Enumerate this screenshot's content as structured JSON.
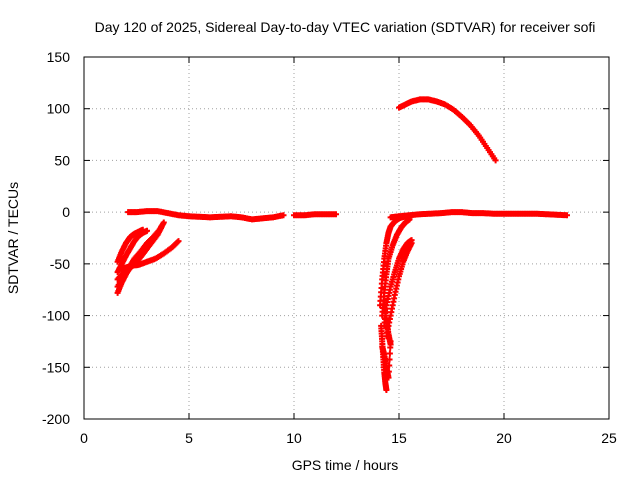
{
  "chart_data": {
    "type": "scatter",
    "title": "Day 120 of 2025, Sidereal Day-to-day VTEC variation (SDTVAR) for receiver sofi",
    "xlabel": "GPS time / hours",
    "ylabel": "SDTVAR / TECUs",
    "xlim": [
      0,
      25
    ],
    "ylim": [
      -200,
      150
    ],
    "x_ticks": [
      0,
      5,
      10,
      15,
      20,
      25
    ],
    "y_ticks": [
      -200,
      -150,
      -100,
      -50,
      0,
      50,
      100,
      150
    ],
    "grid": true,
    "marker": "plus",
    "colors": {
      "series": "#ff0000"
    },
    "series": [
      {
        "points": [
          [
            1.6,
            -78
          ],
          [
            1.8,
            -68
          ],
          [
            2.0,
            -60
          ],
          [
            2.2,
            -52
          ],
          [
            2.4,
            -45
          ],
          [
            2.7,
            -38
          ],
          [
            3.0,
            -30
          ],
          [
            3.3,
            -24
          ],
          [
            3.6,
            -17
          ]
        ]
      },
      {
        "points": [
          [
            1.6,
            -72
          ],
          [
            1.9,
            -62
          ],
          [
            2.2,
            -54
          ],
          [
            2.6,
            -46
          ],
          [
            2.9,
            -38
          ],
          [
            3.2,
            -30
          ],
          [
            3.5,
            -22
          ],
          [
            3.7,
            -14
          ]
        ]
      },
      {
        "points": [
          [
            1.6,
            -65
          ],
          [
            1.9,
            -58
          ],
          [
            2.3,
            -50
          ],
          [
            2.7,
            -42
          ],
          [
            3.0,
            -33
          ],
          [
            3.3,
            -25
          ],
          [
            3.6,
            -17
          ],
          [
            3.8,
            -10
          ]
        ]
      },
      {
        "points": [
          [
            1.6,
            -58
          ],
          [
            1.8,
            -50
          ],
          [
            2.0,
            -42
          ],
          [
            2.2,
            -35
          ],
          [
            2.4,
            -28
          ],
          [
            2.6,
            -23
          ],
          [
            2.8,
            -20
          ],
          [
            3.0,
            -18
          ]
        ]
      },
      {
        "points": [
          [
            1.6,
            -48
          ],
          [
            1.8,
            -38
          ],
          [
            2.0,
            -30
          ],
          [
            2.2,
            -24
          ],
          [
            2.4,
            -21
          ],
          [
            2.6,
            -19
          ],
          [
            2.8,
            -17
          ]
        ]
      },
      {
        "points": [
          [
            1.8,
            -55
          ],
          [
            2.2,
            -52
          ],
          [
            2.6,
            -51
          ],
          [
            3.0,
            -48
          ],
          [
            3.4,
            -45
          ],
          [
            3.8,
            -40
          ],
          [
            4.2,
            -34
          ],
          [
            4.5,
            -28
          ]
        ]
      },
      {
        "points": [
          [
            2.1,
            0
          ],
          [
            2.5,
            0
          ],
          [
            3.0,
            1
          ],
          [
            3.5,
            1
          ],
          [
            4.0,
            -1
          ],
          [
            4.5,
            -3
          ],
          [
            5.0,
            -4
          ],
          [
            5.5,
            -4.5
          ],
          [
            6.0,
            -5
          ],
          [
            6.5,
            -4.5
          ],
          [
            7.0,
            -4
          ],
          [
            7.5,
            -5
          ],
          [
            8.0,
            -7
          ],
          [
            8.5,
            -6
          ],
          [
            9.0,
            -5
          ],
          [
            9.5,
            -3
          ]
        ]
      },
      {
        "points": [
          [
            10.0,
            -3
          ],
          [
            10.5,
            -3
          ],
          [
            11.0,
            -2
          ],
          [
            11.5,
            -2
          ],
          [
            12.0,
            -2
          ]
        ]
      },
      {
        "points": [
          [
            15.0,
            101
          ],
          [
            15.3,
            104
          ],
          [
            15.6,
            107
          ],
          [
            16.0,
            109
          ],
          [
            16.4,
            109
          ],
          [
            16.8,
            107
          ],
          [
            17.2,
            104
          ],
          [
            17.6,
            99
          ],
          [
            18.0,
            92
          ],
          [
            18.4,
            84
          ],
          [
            18.8,
            74
          ],
          [
            19.2,
            62
          ],
          [
            19.6,
            50
          ]
        ]
      },
      {
        "points": [
          [
            14.6,
            -5
          ],
          [
            15.0,
            -4
          ],
          [
            15.5,
            -3
          ],
          [
            16.0,
            -2
          ],
          [
            16.5,
            -1.5
          ],
          [
            17.0,
            -1
          ],
          [
            17.5,
            0
          ],
          [
            18.0,
            0
          ],
          [
            18.5,
            -1
          ],
          [
            19.0,
            -1
          ],
          [
            19.5,
            -1.5
          ],
          [
            20.0,
            -1.5
          ],
          [
            20.5,
            -1.5
          ],
          [
            21.0,
            -1.5
          ],
          [
            21.5,
            -1.5
          ],
          [
            22.0,
            -2
          ],
          [
            22.5,
            -2.5
          ],
          [
            23.0,
            -3
          ]
        ]
      },
      {
        "points": [
          [
            14.1,
            -90
          ],
          [
            14.2,
            -65
          ],
          [
            14.3,
            -45
          ],
          [
            14.4,
            -30
          ],
          [
            14.5,
            -20
          ],
          [
            14.6,
            -14
          ],
          [
            14.8,
            -9
          ],
          [
            15.0,
            -6
          ],
          [
            15.3,
            -4
          ],
          [
            15.6,
            -3
          ]
        ]
      },
      {
        "points": [
          [
            14.2,
            -100
          ],
          [
            14.3,
            -78
          ],
          [
            14.4,
            -60
          ],
          [
            14.5,
            -45
          ],
          [
            14.7,
            -32
          ],
          [
            14.9,
            -22
          ],
          [
            15.1,
            -15
          ],
          [
            15.3,
            -10
          ],
          [
            15.5,
            -7
          ]
        ]
      },
      {
        "points": [
          [
            14.3,
            -110
          ],
          [
            14.4,
            -90
          ],
          [
            14.6,
            -72
          ],
          [
            14.8,
            -58
          ],
          [
            15.0,
            -45
          ],
          [
            15.2,
            -36
          ],
          [
            15.4,
            -30
          ],
          [
            15.6,
            -27
          ]
        ]
      },
      {
        "points": [
          [
            14.4,
            -120
          ],
          [
            14.6,
            -100
          ],
          [
            14.8,
            -80
          ],
          [
            15.0,
            -62
          ],
          [
            15.2,
            -48
          ],
          [
            15.4,
            -38
          ],
          [
            15.6,
            -30
          ]
        ]
      },
      {
        "points": [
          [
            14.15,
            -110
          ],
          [
            14.2,
            -125
          ],
          [
            14.25,
            -140
          ],
          [
            14.3,
            -155
          ],
          [
            14.35,
            -165
          ],
          [
            14.4,
            -172
          ]
        ]
      },
      {
        "points": [
          [
            14.2,
            -130
          ],
          [
            14.3,
            -138
          ],
          [
            14.4,
            -150
          ],
          [
            14.5,
            -160
          ],
          [
            14.6,
            -125
          ]
        ]
      },
      {
        "points": [
          [
            14.3,
            -90
          ],
          [
            14.4,
            -105
          ],
          [
            14.5,
            -118
          ],
          [
            14.6,
            -128
          ]
        ]
      }
    ]
  }
}
